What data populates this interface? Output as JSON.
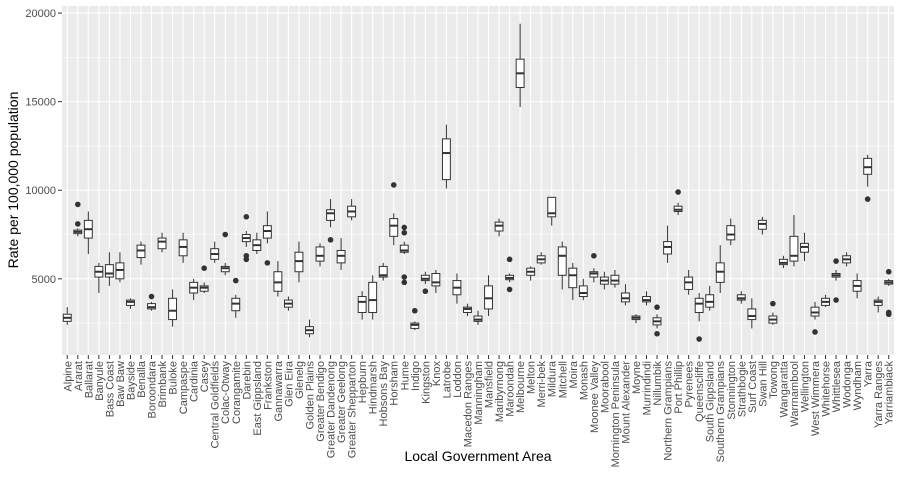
{
  "chart_data": {
    "type": "boxplot",
    "xlabel": "Local Government Area",
    "ylabel": "Rate per 100,000 population",
    "ylim": [
      700,
      20400
    ],
    "yticks": [
      5000,
      10000,
      15000,
      20000
    ],
    "ytick_labels": [
      "5000",
      "10000",
      "15000",
      "20000"
    ],
    "grid": true,
    "colors": {
      "panel": "#ebebeb",
      "grid_major": "#ffffff",
      "box_fill": "#ffffff",
      "box_stroke": "#333333",
      "outlier": "#333333"
    },
    "categories": [
      {
        "name": "Alpine",
        "min": 2400,
        "q1": 2600,
        "median": 2800,
        "q3": 3000,
        "max": 3400,
        "outliers": []
      },
      {
        "name": "Ararat",
        "min": 7400,
        "q1": 7550,
        "median": 7650,
        "q3": 7750,
        "max": 7850,
        "outliers": [
          9200,
          8100
        ]
      },
      {
        "name": "Ballarat",
        "min": 6400,
        "q1": 7300,
        "median": 7800,
        "q3": 8300,
        "max": 8800,
        "outliers": []
      },
      {
        "name": "Banyule",
        "min": 4200,
        "q1": 5100,
        "median": 5400,
        "q3": 5700,
        "max": 5900,
        "outliers": []
      },
      {
        "name": "Bass Coast",
        "min": 4600,
        "q1": 5100,
        "median": 5300,
        "q3": 5800,
        "max": 6500,
        "outliers": []
      },
      {
        "name": "Baw Baw",
        "min": 4800,
        "q1": 5000,
        "median": 5500,
        "q3": 5900,
        "max": 6500,
        "outliers": []
      },
      {
        "name": "Bayside",
        "min": 3300,
        "q1": 3500,
        "median": 3700,
        "q3": 3800,
        "max": 3900,
        "outliers": []
      },
      {
        "name": "Benalla",
        "min": 5800,
        "q1": 6200,
        "median": 6600,
        "q3": 6900,
        "max": 7100,
        "outliers": []
      },
      {
        "name": "Boroondara",
        "min": 3200,
        "q1": 3300,
        "median": 3400,
        "q3": 3600,
        "max": 3700,
        "outliers": [
          4000
        ]
      },
      {
        "name": "Brimbank",
        "min": 6500,
        "q1": 6700,
        "median": 7100,
        "q3": 7300,
        "max": 7600,
        "outliers": []
      },
      {
        "name": "Buloke",
        "min": 2300,
        "q1": 2700,
        "median": 3200,
        "q3": 3900,
        "max": 4400,
        "outliers": []
      },
      {
        "name": "Campaspe",
        "min": 5900,
        "q1": 6300,
        "median": 6800,
        "q3": 7200,
        "max": 7600,
        "outliers": []
      },
      {
        "name": "Cardinia",
        "min": 3800,
        "q1": 4200,
        "median": 4500,
        "q3": 4800,
        "max": 5000,
        "outliers": []
      },
      {
        "name": "Casey",
        "min": 4200,
        "q1": 4300,
        "median": 4500,
        "q3": 4600,
        "max": 4800,
        "outliers": [
          5600
        ]
      },
      {
        "name": "Central Goldfields",
        "min": 5900,
        "q1": 6100,
        "median": 6400,
        "q3": 6700,
        "max": 7100,
        "outliers": []
      },
      {
        "name": "Colac-Otway",
        "min": 5200,
        "q1": 5400,
        "median": 5600,
        "q3": 5700,
        "max": 5900,
        "outliers": [
          7500
        ]
      },
      {
        "name": "Corangamite",
        "min": 2800,
        "q1": 3200,
        "median": 3600,
        "q3": 3900,
        "max": 4100,
        "outliers": [
          4900
        ]
      },
      {
        "name": "Darebin",
        "min": 6800,
        "q1": 7100,
        "median": 7300,
        "q3": 7500,
        "max": 7700,
        "outliers": [
          8500,
          6300,
          6100
        ]
      },
      {
        "name": "East Gippsland",
        "min": 6400,
        "q1": 6600,
        "median": 6900,
        "q3": 7200,
        "max": 7600,
        "outliers": []
      },
      {
        "name": "Frankston",
        "min": 7000,
        "q1": 7300,
        "median": 7700,
        "q3": 8000,
        "max": 8800,
        "outliers": [
          5900
        ]
      },
      {
        "name": "Gannawarra",
        "min": 4000,
        "q1": 4300,
        "median": 4800,
        "q3": 5400,
        "max": 6000,
        "outliers": []
      },
      {
        "name": "Glen Eira",
        "min": 3200,
        "q1": 3400,
        "median": 3600,
        "q3": 3800,
        "max": 4000,
        "outliers": []
      },
      {
        "name": "Glenelg",
        "min": 4800,
        "q1": 5400,
        "median": 6000,
        "q3": 6500,
        "max": 7100,
        "outliers": []
      },
      {
        "name": "Golden Plains",
        "min": 1700,
        "q1": 1900,
        "median": 2100,
        "q3": 2300,
        "max": 2700,
        "outliers": []
      },
      {
        "name": "Greater Bendigo",
        "min": 5700,
        "q1": 6000,
        "median": 6300,
        "q3": 6800,
        "max": 7000,
        "outliers": []
      },
      {
        "name": "Greater Dandenong",
        "min": 7900,
        "q1": 8300,
        "median": 8700,
        "q3": 8900,
        "max": 9500,
        "outliers": [
          7200
        ]
      },
      {
        "name": "Greater Geelong",
        "min": 5500,
        "q1": 5900,
        "median": 6300,
        "q3": 6600,
        "max": 7300,
        "outliers": []
      },
      {
        "name": "Greater Shepparton",
        "min": 8300,
        "q1": 8500,
        "median": 8800,
        "q3": 9100,
        "max": 9500,
        "outliers": []
      },
      {
        "name": "Hepburn",
        "min": 2700,
        "q1": 3100,
        "median": 3700,
        "q3": 4000,
        "max": 4300,
        "outliers": []
      },
      {
        "name": "Hindmarsh",
        "min": 2700,
        "q1": 3100,
        "median": 3800,
        "q3": 4800,
        "max": 5200,
        "outliers": []
      },
      {
        "name": "Hobsons Bay",
        "min": 4900,
        "q1": 5100,
        "median": 5200,
        "q3": 5700,
        "max": 5900,
        "outliers": []
      },
      {
        "name": "Horsham",
        "min": 6900,
        "q1": 7400,
        "median": 8000,
        "q3": 8400,
        "max": 8700,
        "outliers": [
          10300
        ]
      },
      {
        "name": "Hume",
        "min": 6400,
        "q1": 6500,
        "median": 6600,
        "q3": 6900,
        "max": 7100,
        "outliers": [
          7900,
          7600,
          5100,
          4800
        ]
      },
      {
        "name": "Indigo",
        "min": 2100,
        "q1": 2200,
        "median": 2400,
        "q3": 2500,
        "max": 2600,
        "outliers": [
          3200
        ]
      },
      {
        "name": "Kingston",
        "min": 4700,
        "q1": 4900,
        "median": 5000,
        "q3": 5200,
        "max": 5400,
        "outliers": [
          4300
        ]
      },
      {
        "name": "Knox",
        "min": 4200,
        "q1": 4600,
        "median": 4800,
        "q3": 5300,
        "max": 5500,
        "outliers": []
      },
      {
        "name": "Latrobe",
        "min": 10100,
        "q1": 10600,
        "median": 12100,
        "q3": 12900,
        "max": 13700,
        "outliers": []
      },
      {
        "name": "Loddon",
        "min": 3600,
        "q1": 4100,
        "median": 4500,
        "q3": 4900,
        "max": 5300,
        "outliers": []
      },
      {
        "name": "Macedon Ranges",
        "min": 2900,
        "q1": 3100,
        "median": 3300,
        "q3": 3400,
        "max": 3600,
        "outliers": []
      },
      {
        "name": "Manningham",
        "min": 2400,
        "q1": 2600,
        "median": 2700,
        "q3": 2900,
        "max": 3200,
        "outliers": []
      },
      {
        "name": "Mansfield",
        "min": 2900,
        "q1": 3300,
        "median": 3900,
        "q3": 4600,
        "max": 5200,
        "outliers": []
      },
      {
        "name": "Maribyrnong",
        "min": 7400,
        "q1": 7700,
        "median": 8000,
        "q3": 8200,
        "max": 8400,
        "outliers": []
      },
      {
        "name": "Maroondah",
        "min": 4800,
        "q1": 4950,
        "median": 5050,
        "q3": 5200,
        "max": 5300,
        "outliers": [
          6100,
          4400
        ]
      },
      {
        "name": "Melbourne",
        "min": 14700,
        "q1": 15800,
        "median": 16600,
        "q3": 17400,
        "max": 19400,
        "outliers": []
      },
      {
        "name": "Melton",
        "min": 4900,
        "q1": 5200,
        "median": 5400,
        "q3": 5600,
        "max": 5700,
        "outliers": []
      },
      {
        "name": "Merri-bek",
        "min": 5800,
        "q1": 5900,
        "median": 6100,
        "q3": 6300,
        "max": 6500,
        "outliers": []
      },
      {
        "name": "Mildura",
        "min": 8000,
        "q1": 8500,
        "median": 8700,
        "q3": 9600,
        "max": 9600,
        "outliers": []
      },
      {
        "name": "Mitchell",
        "min": 4400,
        "q1": 5200,
        "median": 6300,
        "q3": 6800,
        "max": 7100,
        "outliers": []
      },
      {
        "name": "Moira",
        "min": 3800,
        "q1": 4500,
        "median": 5200,
        "q3": 5600,
        "max": 5900,
        "outliers": []
      },
      {
        "name": "Monash",
        "min": 3800,
        "q1": 4000,
        "median": 4200,
        "q3": 4600,
        "max": 5000,
        "outliers": []
      },
      {
        "name": "Moonee Valley",
        "min": 4800,
        "q1": 5100,
        "median": 5300,
        "q3": 5400,
        "max": 5600,
        "outliers": [
          6300
        ]
      },
      {
        "name": "Moorabool",
        "min": 4400,
        "q1": 4700,
        "median": 4900,
        "q3": 5100,
        "max": 5400,
        "outliers": []
      },
      {
        "name": "Mornington Peninsula",
        "min": 4500,
        "q1": 4700,
        "median": 4900,
        "q3": 5200,
        "max": 5500,
        "outliers": []
      },
      {
        "name": "Mount Alexander",
        "min": 3500,
        "q1": 3700,
        "median": 3900,
        "q3": 4200,
        "max": 4700,
        "outliers": []
      },
      {
        "name": "Moyne",
        "min": 2500,
        "q1": 2700,
        "median": 2800,
        "q3": 2900,
        "max": 3000,
        "outliers": []
      },
      {
        "name": "Murrindindi",
        "min": 3500,
        "q1": 3700,
        "median": 3800,
        "q3": 4000,
        "max": 4300,
        "outliers": []
      },
      {
        "name": "Nillumbik",
        "min": 2200,
        "q1": 2400,
        "median": 2600,
        "q3": 2800,
        "max": 3000,
        "outliers": [
          3400,
          1900
        ]
      },
      {
        "name": "Northern Grampians",
        "min": 5900,
        "q1": 6400,
        "median": 6800,
        "q3": 7100,
        "max": 8000,
        "outliers": []
      },
      {
        "name": "Port Phillip",
        "min": 8600,
        "q1": 8800,
        "median": 8900,
        "q3": 9100,
        "max": 9300,
        "outliers": [
          9900
        ]
      },
      {
        "name": "Pyrenees",
        "min": 4100,
        "q1": 4400,
        "median": 4800,
        "q3": 5100,
        "max": 5500,
        "outliers": []
      },
      {
        "name": "Queenscliffe",
        "min": 2600,
        "q1": 3100,
        "median": 3600,
        "q3": 3900,
        "max": 4200,
        "outliers": [
          1600
        ]
      },
      {
        "name": "South Gippsland",
        "min": 3200,
        "q1": 3400,
        "median": 3700,
        "q3": 4100,
        "max": 4600,
        "outliers": []
      },
      {
        "name": "Southern Grampians",
        "min": 4200,
        "q1": 4800,
        "median": 5400,
        "q3": 5900,
        "max": 6900,
        "outliers": []
      },
      {
        "name": "Stonnington",
        "min": 6900,
        "q1": 7200,
        "median": 7500,
        "q3": 8000,
        "max": 8400,
        "outliers": []
      },
      {
        "name": "Strathbogie",
        "min": 3600,
        "q1": 3800,
        "median": 3900,
        "q3": 4100,
        "max": 4300,
        "outliers": []
      },
      {
        "name": "Surf Coast",
        "min": 2200,
        "q1": 2700,
        "median": 2900,
        "q3": 3300,
        "max": 3900,
        "outliers": []
      },
      {
        "name": "Swan Hill",
        "min": 7500,
        "q1": 7800,
        "median": 8100,
        "q3": 8300,
        "max": 8500,
        "outliers": []
      },
      {
        "name": "Towong",
        "min": 2400,
        "q1": 2500,
        "median": 2700,
        "q3": 2900,
        "max": 3100,
        "outliers": [
          3600
        ]
      },
      {
        "name": "Wangaratta",
        "min": 5600,
        "q1": 5800,
        "median": 5900,
        "q3": 6100,
        "max": 6300,
        "outliers": []
      },
      {
        "name": "Warrnambool",
        "min": 5700,
        "q1": 6000,
        "median": 6300,
        "q3": 7400,
        "max": 8600,
        "outliers": []
      },
      {
        "name": "Wellington",
        "min": 6000,
        "q1": 6500,
        "median": 6800,
        "q3": 7000,
        "max": 7600,
        "outliers": []
      },
      {
        "name": "West Wimmera",
        "min": 2700,
        "q1": 2900,
        "median": 3100,
        "q3": 3400,
        "max": 3700,
        "outliers": [
          2000
        ]
      },
      {
        "name": "Whitehorse",
        "min": 3400,
        "q1": 3500,
        "median": 3700,
        "q3": 3900,
        "max": 4100,
        "outliers": []
      },
      {
        "name": "Whittlesea",
        "min": 4900,
        "q1": 5100,
        "median": 5200,
        "q3": 5300,
        "max": 5500,
        "outliers": [
          6000,
          3800
        ]
      },
      {
        "name": "Wodonga",
        "min": 5700,
        "q1": 5900,
        "median": 6100,
        "q3": 6300,
        "max": 6500,
        "outliers": []
      },
      {
        "name": "Wyndham",
        "min": 3900,
        "q1": 4300,
        "median": 4600,
        "q3": 4900,
        "max": 5300,
        "outliers": []
      },
      {
        "name": "Yarra",
        "min": 10200,
        "q1": 10900,
        "median": 11300,
        "q3": 11800,
        "max": 12000,
        "outliers": [
          9500
        ]
      },
      {
        "name": "Yarra Ranges",
        "min": 3100,
        "q1": 3500,
        "median": 3700,
        "q3": 3800,
        "max": 4000,
        "outliers": []
      },
      {
        "name": "Yarriambiack",
        "min": 4600,
        "q1": 4700,
        "median": 4800,
        "q3": 4900,
        "max": 5000,
        "outliers": [
          5400,
          3100,
          3000
        ]
      }
    ]
  }
}
